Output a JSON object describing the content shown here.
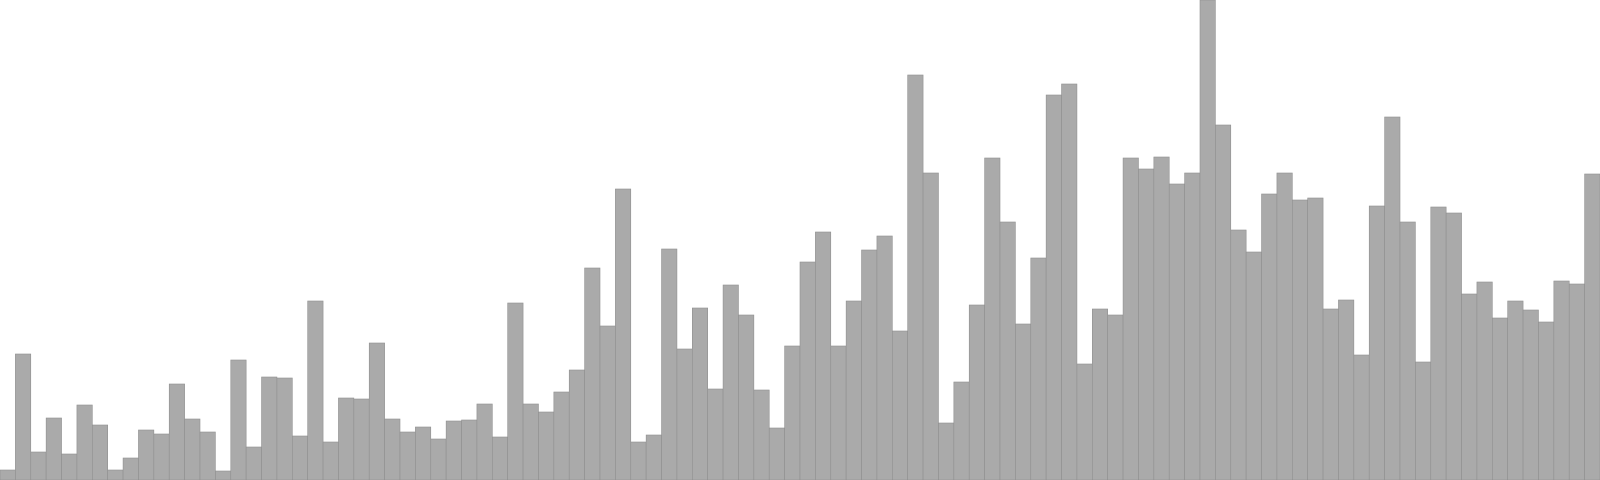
{
  "chart_data": {
    "type": "bar",
    "title": "",
    "xlabel": "",
    "ylabel": "",
    "ylim": [
      0,
      480
    ],
    "grid": false,
    "legend": "none",
    "colors": {
      "bar_fill": "#aaaaaa",
      "bar_stroke": "#8f8f8f",
      "background": "#ffffff"
    },
    "values": [
      10,
      126,
      28,
      62,
      26,
      75,
      55,
      10,
      22,
      50,
      46,
      96,
      61,
      48,
      9,
      120,
      33,
      103,
      102,
      44,
      179,
      38,
      82,
      81,
      137,
      61,
      48,
      53,
      41,
      59,
      60,
      76,
      43,
      177,
      76,
      68,
      88,
      110,
      212,
      154,
      291,
      38,
      45,
      231,
      131,
      172,
      91,
      195,
      165,
      90,
      52,
      134,
      218,
      248,
      134,
      179,
      230,
      244,
      149,
      405,
      307,
      57,
      98,
      175,
      322,
      258,
      156,
      222,
      385,
      396,
      116,
      171,
      165,
      322,
      311,
      323,
      296,
      307,
      480,
      355,
      250,
      228,
      286,
      307,
      280,
      282,
      171,
      180,
      125,
      274,
      363,
      258,
      118,
      273,
      267,
      186,
      198,
      162,
      179,
      170,
      158,
      199,
      196,
      306
    ]
  }
}
